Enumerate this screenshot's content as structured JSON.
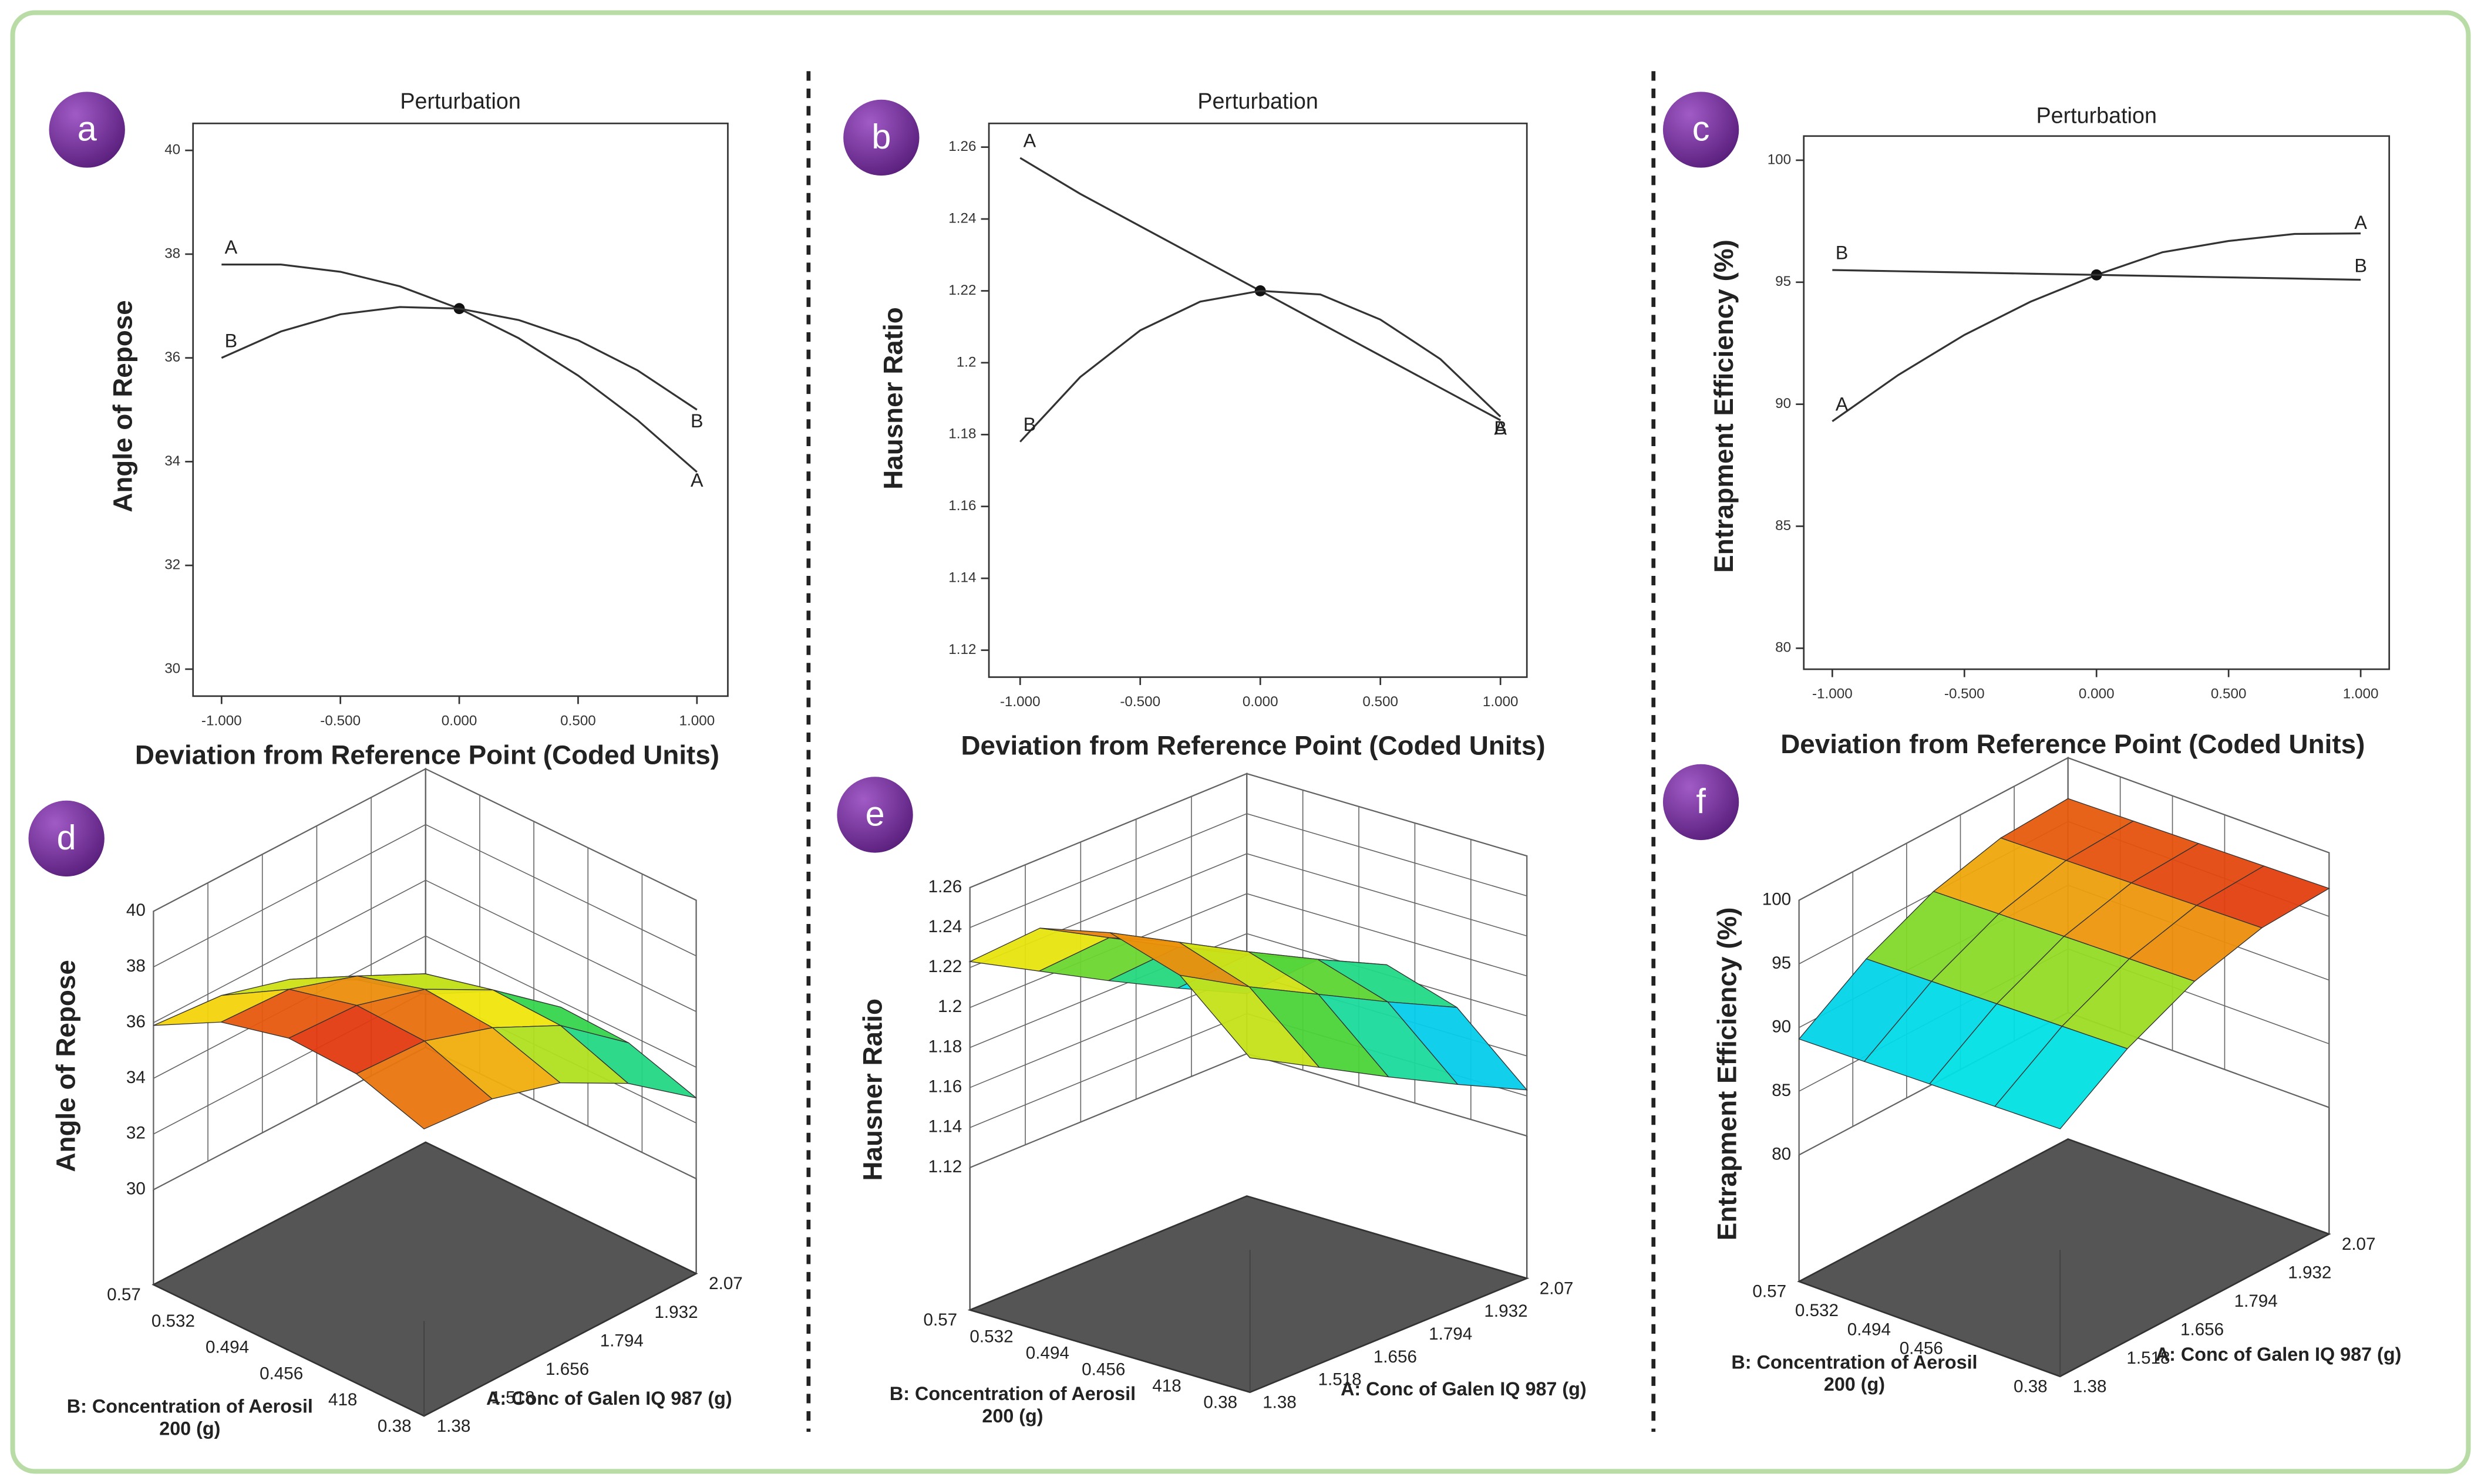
{
  "chart_data": [
    {
      "type": "line",
      "label": "a",
      "title": "Perturbation",
      "x_label": "Deviation from Reference Point (Coded Units)",
      "y_label": "Angle of Repose",
      "x": [
        -1,
        -0.75,
        -0.5,
        -0.25,
        0,
        0.25,
        0.5,
        0.75,
        1
      ],
      "xlim": [
        -1.12,
        1.13
      ],
      "xticks": [
        {
          "value": -1,
          "label": "-1.000"
        },
        {
          "value": -0.5,
          "label": "-0.500"
        },
        {
          "value": 0,
          "label": "0.000"
        },
        {
          "value": 0.5,
          "label": "0.500"
        },
        {
          "value": 1,
          "label": "1.000"
        }
      ],
      "ylim": [
        29.48,
        40.52
      ],
      "yticks": [
        30,
        32,
        34,
        36,
        38,
        40
      ],
      "series": [
        {
          "name": "A",
          "color": "#333333",
          "values": [
            37.8,
            37.8,
            37.66,
            37.38,
            36.95,
            36.38,
            35.66,
            34.8,
            33.8
          ]
        },
        {
          "name": "B",
          "color": "#333333",
          "values": [
            36.0,
            36.51,
            36.84,
            36.98,
            36.95,
            36.73,
            36.34,
            35.76,
            35.0
          ]
        }
      ]
    },
    {
      "type": "line",
      "label": "b",
      "title": "Perturbation",
      "x_label": "Deviation from Reference Point (Coded Units)",
      "y_label": "Hausner Ratio",
      "x": [
        -1,
        -0.75,
        -0.5,
        -0.25,
        0,
        0.25,
        0.5,
        0.75,
        1
      ],
      "xlim": [
        -1.13,
        1.11
      ],
      "xticks": [
        {
          "value": -1,
          "label": "-1.000"
        },
        {
          "value": -0.5,
          "label": "-0.500"
        },
        {
          "value": 0,
          "label": "0.000"
        },
        {
          "value": 0.5,
          "label": "0.500"
        },
        {
          "value": 1,
          "label": "1.000"
        }
      ],
      "ylim": [
        1.1125,
        1.2666
      ],
      "yticks": [
        1.12,
        1.14,
        1.16,
        1.18,
        1.2,
        1.22,
        1.24,
        1.26
      ],
      "series": [
        {
          "name": "A",
          "color": "#333333",
          "values": [
            1.257,
            1.247,
            1.238,
            1.229,
            1.22,
            1.211,
            1.202,
            1.193,
            1.184
          ]
        },
        {
          "name": "B",
          "color": "#333333",
          "values": [
            1.178,
            1.196,
            1.209,
            1.217,
            1.22,
            1.219,
            1.212,
            1.201,
            1.185
          ]
        }
      ]
    },
    {
      "type": "line",
      "label": "c",
      "title": "Perturbation",
      "x_label": "Deviation from Reference Point (Coded Units)",
      "y_label": "Entrapment Efficiency (%)",
      "x": [
        -1,
        -0.75,
        -0.5,
        -0.25,
        0,
        0.25,
        0.5,
        0.75,
        1
      ],
      "xlim": [
        -1.108,
        1.108
      ],
      "xticks": [
        {
          "value": -1,
          "label": "-1.000"
        },
        {
          "value": -0.5,
          "label": "-0.500"
        },
        {
          "value": 0,
          "label": "0.000"
        },
        {
          "value": 0.5,
          "label": "0.500"
        },
        {
          "value": 1,
          "label": "1.000"
        }
      ],
      "ylim": [
        79.14,
        100.99
      ],
      "yticks": [
        80,
        85,
        90,
        95,
        100
      ],
      "series": [
        {
          "name": "A",
          "color": "#333333",
          "values": [
            89.3,
            91.2,
            92.84,
            94.2,
            95.3,
            96.23,
            96.69,
            96.98,
            97.0
          ]
        },
        {
          "name": "B",
          "color": "#333333",
          "values": [
            95.5,
            95.45,
            95.4,
            95.35,
            95.3,
            95.25,
            95.2,
            95.15,
            95.1
          ]
        }
      ]
    },
    {
      "type": "surface",
      "label": "d",
      "z_label": "Angle of Repose",
      "x_label": "A: Conc of Galen IQ 987 (g)",
      "y_label": "B: Concentration of Aerosil 200 (g)",
      "x": [
        1.38,
        1.5525,
        1.725,
        1.8975,
        2.07
      ],
      "y": [
        0.38,
        0.4275,
        0.475,
        0.5225,
        0.57
      ],
      "z": [
        [
          36.9,
          36.7,
          36.0,
          34.7,
          32.9
        ],
        [
          37.7,
          37.6,
          36.8,
          35.6,
          33.7
        ],
        [
          37.8,
          37.7,
          37.0,
          35.7,
          33.8
        ],
        [
          37.2,
          37.1,
          36.3,
          35.1,
          33.2
        ],
        [
          35.9,
          35.7,
          35.0,
          33.7,
          31.9
        ]
      ],
      "xlim": [
        1.38,
        2.07
      ],
      "ylim": [
        0.38,
        0.57
      ],
      "zlim": [
        30,
        40
      ],
      "xticks": [
        1.38,
        1.518,
        1.656,
        1.794,
        1.932,
        2.07
      ],
      "yticks": [
        0.38,
        {
          "value": 0.418,
          "label": "418"
        },
        0.456,
        0.494,
        0.532,
        0.57
      ],
      "zticks": [
        30,
        32,
        34,
        36,
        38,
        40
      ]
    },
    {
      "type": "surface",
      "label": "e",
      "z_label": "Hausner Ratio",
      "x_label": "A: Conc of Galen IQ 987 (g)",
      "y_label": "B: Concentration of Aerosil 200 (g)",
      "x": [
        1.38,
        1.5525,
        1.725,
        1.8975,
        2.07
      ],
      "y": [
        0.38,
        0.4275,
        0.475,
        0.5225,
        0.57
      ],
      "z": [
        [
          1.216,
          1.197,
          1.178,
          1.16,
          1.143
        ],
        [
          1.247,
          1.227,
          1.209,
          1.191,
          1.174
        ],
        [
          1.258,
          1.239,
          1.22,
          1.202,
          1.185
        ],
        [
          1.25,
          1.231,
          1.212,
          1.194,
          1.177
        ],
        [
          1.223,
          1.204,
          1.185,
          1.167,
          1.15
        ]
      ],
      "xlim": [
        1.38,
        2.07
      ],
      "ylim": [
        0.38,
        0.57
      ],
      "zlim": [
        1.12,
        1.26
      ],
      "xticks": [
        1.38,
        1.518,
        1.656,
        1.794,
        1.932,
        2.07
      ],
      "yticks": [
        0.38,
        {
          "value": 0.418,
          "label": "418"
        },
        0.456,
        0.494,
        0.532,
        0.57
      ],
      "zticks": [
        1.12,
        1.14,
        1.16,
        1.18,
        1.2,
        1.22,
        1.24,
        1.26
      ]
    },
    {
      "type": "surface",
      "label": "f",
      "z_label": "Entrapment  Efficiency (%)",
      "x_label": "A: Conc of Galen IQ 987 (g)",
      "y_label": "B: Concentration of Aerosil 200 (g)",
      "x": [
        1.38,
        1.5525,
        1.725,
        1.8975,
        2.07
      ],
      "y": [
        0.38,
        0.4275,
        0.475,
        0.5225,
        0.57
      ],
      "z": [
        [
          89.5,
          93.0,
          95.5,
          96.9,
          97.2
        ],
        [
          89.4,
          92.9,
          95.4,
          96.8,
          97.1
        ],
        [
          89.3,
          92.8,
          95.3,
          96.7,
          97.0
        ],
        [
          89.2,
          92.7,
          95.2,
          96.6,
          96.9
        ],
        [
          89.1,
          92.6,
          95.1,
          96.5,
          96.8
        ]
      ],
      "xlim": [
        1.38,
        2.07
      ],
      "ylim": [
        0.38,
        0.57
      ],
      "zlim": [
        80,
        100
      ],
      "xticks": [
        1.38,
        1.518,
        1.656,
        1.794,
        1.932,
        2.07
      ],
      "yticks": [
        0.38,
        0.456,
        0.494,
        0.532,
        0.57
      ],
      "zticks": [
        80,
        85,
        90,
        95,
        100
      ]
    }
  ]
}
